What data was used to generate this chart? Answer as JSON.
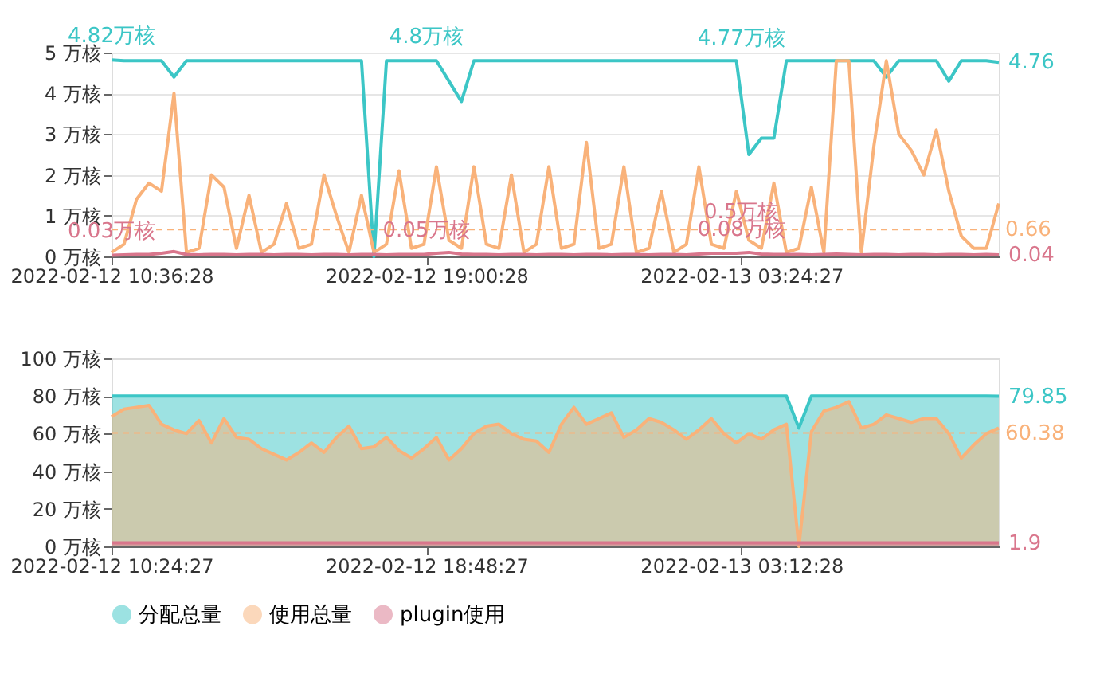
{
  "chart_data": [
    {
      "type": "line",
      "x": [
        "2022-02-12T10:36:28",
        "2022-02-12T10:56:28",
        "2022-02-12T11:16:28",
        "2022-02-12T11:36:28",
        "2022-02-12T11:56:28",
        "2022-02-12T12:16:28",
        "2022-02-12T12:36:28",
        "2022-02-12T12:56:28",
        "2022-02-12T13:16:28",
        "2022-02-12T13:36:28",
        "2022-02-12T13:56:28",
        "2022-02-12T14:16:28",
        "2022-02-12T14:36:28",
        "2022-02-12T14:56:28",
        "2022-02-12T15:16:28",
        "2022-02-12T15:36:28",
        "2022-02-12T15:56:28",
        "2022-02-12T16:16:28",
        "2022-02-12T16:36:28",
        "2022-02-12T16:56:28",
        "2022-02-12T17:16:28",
        "2022-02-12T17:36:28",
        "2022-02-12T17:56:28",
        "2022-02-12T18:16:28",
        "2022-02-12T18:36:28",
        "2022-02-12T18:56:28",
        "2022-02-12T19:16:28",
        "2022-02-12T19:36:28",
        "2022-02-12T19:56:28",
        "2022-02-12T20:16:28",
        "2022-02-12T20:36:28",
        "2022-02-12T20:56:28",
        "2022-02-12T21:16:28",
        "2022-02-12T21:36:28",
        "2022-02-12T21:56:28",
        "2022-02-12T22:16:28",
        "2022-02-12T22:36:28",
        "2022-02-12T22:56:28",
        "2022-02-12T23:16:28",
        "2022-02-12T23:36:28",
        "2022-02-12T23:56:28",
        "2022-02-13T00:16:28",
        "2022-02-13T00:36:28",
        "2022-02-13T00:56:28",
        "2022-02-13T01:16:28",
        "2022-02-13T01:36:28",
        "2022-02-13T01:56:28",
        "2022-02-13T02:16:28",
        "2022-02-13T02:36:28",
        "2022-02-13T02:56:28",
        "2022-02-13T03:16:28",
        "2022-02-13T03:36:28",
        "2022-02-13T03:56:28",
        "2022-02-13T04:16:28",
        "2022-02-13T04:36:28",
        "2022-02-13T04:56:28",
        "2022-02-13T05:16:28",
        "2022-02-13T05:36:28",
        "2022-02-13T05:56:28",
        "2022-02-13T06:16:28",
        "2022-02-13T06:36:28",
        "2022-02-13T06:56:28",
        "2022-02-13T07:16:28",
        "2022-02-13T07:36:28",
        "2022-02-13T07:56:28",
        "2022-02-13T08:16:28",
        "2022-02-13T08:36:28",
        "2022-02-13T08:56:28",
        "2022-02-13T09:16:28",
        "2022-02-13T09:36:28",
        "2022-02-13T09:56:28",
        "2022-02-13T10:16:28"
      ],
      "series": [
        {
          "color": "#3cc6c6",
          "values": [
            4.82,
            4.8,
            4.8,
            4.8,
            4.8,
            4.4,
            4.8,
            4.8,
            4.8,
            4.8,
            4.8,
            4.8,
            4.8,
            4.8,
            4.8,
            4.8,
            4.8,
            4.8,
            4.8,
            4.8,
            4.8,
            0.0,
            4.8,
            4.8,
            4.8,
            4.8,
            4.8,
            4.3,
            3.8,
            4.8,
            4.8,
            4.8,
            4.8,
            4.8,
            4.8,
            4.8,
            4.8,
            4.8,
            4.8,
            4.8,
            4.8,
            4.8,
            4.8,
            4.8,
            4.8,
            4.8,
            4.8,
            4.8,
            4.8,
            4.8,
            4.8,
            2.5,
            2.9,
            2.9,
            4.8,
            4.8,
            4.8,
            4.8,
            4.8,
            4.8,
            4.8,
            4.8,
            4.4,
            4.8,
            4.8,
            4.8,
            4.8,
            4.3,
            4.8,
            4.8,
            4.8,
            4.76
          ]
        },
        {
          "color": "#f9b27a",
          "values": [
            0.1,
            0.3,
            1.4,
            1.8,
            1.6,
            4.0,
            0.1,
            0.2,
            2.0,
            1.7,
            0.2,
            1.5,
            0.1,
            0.3,
            1.3,
            0.2,
            0.3,
            2.0,
            1.0,
            0.1,
            1.5,
            0.1,
            0.3,
            2.1,
            0.2,
            0.3,
            2.2,
            0.4,
            0.2,
            2.2,
            0.3,
            0.2,
            2.0,
            0.1,
            0.3,
            2.2,
            0.2,
            0.3,
            2.8,
            0.2,
            0.3,
            2.2,
            0.1,
            0.2,
            1.6,
            0.1,
            0.3,
            2.2,
            0.3,
            0.2,
            1.6,
            0.4,
            0.2,
            1.8,
            0.1,
            0.2,
            1.7,
            0.1,
            4.8,
            4.8,
            0.1,
            2.7,
            4.8,
            3.0,
            2.6,
            2.0,
            3.1,
            1.6,
            0.5,
            0.2,
            0.2,
            1.3
          ]
        },
        {
          "color": "#d9768c",
          "values": [
            0.03,
            0.04,
            0.05,
            0.05,
            0.08,
            0.12,
            0.05,
            0.04,
            0.05,
            0.05,
            0.04,
            0.05,
            0.05,
            0.04,
            0.05,
            0.05,
            0.04,
            0.05,
            0.05,
            0.04,
            0.05,
            0.05,
            0.04,
            0.05,
            0.05,
            0.05,
            0.08,
            0.1,
            0.06,
            0.05,
            0.05,
            0.04,
            0.05,
            0.05,
            0.04,
            0.05,
            0.05,
            0.04,
            0.05,
            0.05,
            0.04,
            0.05,
            0.05,
            0.04,
            0.05,
            0.05,
            0.04,
            0.06,
            0.08,
            0.08,
            0.08,
            0.1,
            0.06,
            0.05,
            0.05,
            0.05,
            0.04,
            0.05,
            0.06,
            0.05,
            0.04,
            0.05,
            0.05,
            0.04,
            0.05,
            0.05,
            0.04,
            0.05,
            0.05,
            0.04,
            0.05,
            0.04
          ]
        }
      ],
      "xlim": [
        "2022-02-12T10:36:28",
        "2022-02-13T10:16:28"
      ],
      "xticks": [
        {
          "value": "2022-02-12T10:36:28",
          "label": "2022-02-12 10:36:28"
        },
        {
          "value": "2022-02-12T19:00:28",
          "label": "2022-02-12 19:00:28"
        },
        {
          "value": "2022-02-13T03:24:27",
          "label": "2022-02-13 03:24:27"
        }
      ],
      "ylim": [
        0,
        5
      ],
      "yticks": [
        {
          "value": 0,
          "label": "0 万核"
        },
        {
          "value": 1,
          "label": "1 万核"
        },
        {
          "value": 2,
          "label": "2 万核"
        },
        {
          "value": 3,
          "label": "3 万核"
        },
        {
          "value": 4,
          "label": "4 万核"
        },
        {
          "value": 5,
          "label": "5 万核"
        }
      ],
      "grid": "y",
      "legend": false,
      "marker": "none",
      "line_style": "solid",
      "ref_lines": [
        {
          "axis": "y",
          "value": 0.66,
          "label": "0.66",
          "color": "#f9b27a",
          "line_style": "dashed"
        }
      ],
      "annotations": [
        {
          "text": "4.82万核",
          "x": "2022-02-12T10:36:28",
          "y": 4.82
        },
        {
          "text": "4.8万核",
          "x": "2022-02-12T19:00:28",
          "y": 4.8
        },
        {
          "text": "4.77万核",
          "x": "2022-02-13T03:24:27",
          "y": 4.77
        },
        {
          "text": "0.03万核",
          "x": "2022-02-12T10:36:28",
          "y": 0.03
        },
        {
          "text": "0.05万核",
          "x": "2022-02-12T19:00:28",
          "y": 0.05
        },
        {
          "text": "0.5万核",
          "x": "2022-02-13T03:24:27",
          "y": 0.5
        },
        {
          "text": "0.08万核",
          "x": "2022-02-13T03:24:27",
          "y": 0.08
        },
        {
          "text": "4.76",
          "x": "2022-02-13T10:16:28",
          "y": 4.76
        },
        {
          "text": "0.04",
          "x": "2022-02-13T10:16:28",
          "y": 0.04
        }
      ]
    },
    {
      "type": "area",
      "x": [
        "2022-02-12T10:24:27",
        "2022-02-12T10:44:27",
        "2022-02-12T11:04:27",
        "2022-02-12T11:24:27",
        "2022-02-12T11:44:27",
        "2022-02-12T12:04:27",
        "2022-02-12T12:24:27",
        "2022-02-12T12:44:27",
        "2022-02-12T13:04:27",
        "2022-02-12T13:24:27",
        "2022-02-12T13:44:27",
        "2022-02-12T14:04:27",
        "2022-02-12T14:24:27",
        "2022-02-12T14:44:27",
        "2022-02-12T15:04:27",
        "2022-02-12T15:24:27",
        "2022-02-12T15:44:27",
        "2022-02-12T16:04:27",
        "2022-02-12T16:24:27",
        "2022-02-12T16:44:27",
        "2022-02-12T17:04:27",
        "2022-02-12T17:24:27",
        "2022-02-12T17:44:27",
        "2022-02-12T18:04:27",
        "2022-02-12T18:24:27",
        "2022-02-12T18:44:27",
        "2022-02-12T19:04:27",
        "2022-02-12T19:24:27",
        "2022-02-12T19:44:27",
        "2022-02-12T20:04:27",
        "2022-02-12T20:24:27",
        "2022-02-12T20:44:27",
        "2022-02-12T21:04:27",
        "2022-02-12T21:24:27",
        "2022-02-12T21:44:27",
        "2022-02-12T22:04:27",
        "2022-02-12T22:24:27",
        "2022-02-12T22:44:27",
        "2022-02-12T23:04:27",
        "2022-02-12T23:24:27",
        "2022-02-12T23:44:27",
        "2022-02-13T00:04:27",
        "2022-02-13T00:24:27",
        "2022-02-13T00:44:27",
        "2022-02-13T01:04:27",
        "2022-02-13T01:24:27",
        "2022-02-13T01:44:27",
        "2022-02-13T02:04:27",
        "2022-02-13T02:24:27",
        "2022-02-13T02:44:27",
        "2022-02-13T03:04:27",
        "2022-02-13T03:24:27",
        "2022-02-13T03:44:27",
        "2022-02-13T04:04:27",
        "2022-02-13T04:24:27",
        "2022-02-13T04:44:27",
        "2022-02-13T05:04:27",
        "2022-02-13T05:24:27",
        "2022-02-13T05:44:27",
        "2022-02-13T06:04:27",
        "2022-02-13T06:24:27",
        "2022-02-13T06:44:27",
        "2022-02-13T07:04:27",
        "2022-02-13T07:24:27",
        "2022-02-13T07:44:27",
        "2022-02-13T08:04:27",
        "2022-02-13T08:24:27",
        "2022-02-13T08:44:27",
        "2022-02-13T09:04:27",
        "2022-02-13T09:24:27",
        "2022-02-13T09:44:27",
        "2022-02-13T10:04:27"
      ],
      "series": [
        {
          "name": "分配总量",
          "color": "#3cc6c6",
          "values": [
            80,
            80,
            80,
            80,
            80,
            80,
            80,
            80,
            80,
            80,
            80,
            80,
            80,
            80,
            80,
            80,
            80,
            80,
            80,
            80,
            80,
            80,
            80,
            80,
            80,
            80,
            80,
            80,
            80,
            80,
            80,
            80,
            80,
            80,
            80,
            80,
            80,
            80,
            80,
            80,
            80,
            80,
            80,
            80,
            80,
            80,
            80,
            80,
            80,
            80,
            80,
            80,
            80,
            80,
            80,
            63,
            80,
            80,
            80,
            80,
            80,
            80,
            80,
            80,
            80,
            80,
            80,
            80,
            80,
            80,
            80,
            79.85
          ]
        },
        {
          "name": "使用总量",
          "color": "#f9b27a",
          "values": [
            69,
            73,
            74,
            75,
            65,
            62,
            60,
            67,
            55,
            68,
            58,
            57,
            52,
            49,
            46,
            50,
            55,
            50,
            58,
            64,
            52,
            53,
            58,
            51,
            47,
            52,
            58,
            46,
            52,
            60,
            64,
            65,
            60,
            57,
            56,
            50,
            65,
            74,
            65,
            68,
            71,
            58,
            62,
            68,
            66,
            62,
            57,
            62,
            68,
            60,
            55,
            60,
            57,
            62,
            65,
            0,
            61,
            72,
            74,
            77,
            63,
            65,
            70,
            68,
            66,
            68,
            68,
            60,
            47,
            54,
            60,
            63
          ]
        },
        {
          "name": "plugin使用",
          "color": "#d9768c",
          "values": [
            1.9,
            1.9,
            1.9,
            1.9,
            1.9,
            1.9,
            1.9,
            1.9,
            1.9,
            1.9,
            1.9,
            1.9,
            1.9,
            1.9,
            1.9,
            1.9,
            1.9,
            1.9,
            1.9,
            1.9,
            1.9,
            1.9,
            1.9,
            1.9,
            1.9,
            1.9,
            1.9,
            1.9,
            1.9,
            1.9,
            1.9,
            1.9,
            1.9,
            1.9,
            1.9,
            1.9,
            1.9,
            1.9,
            1.9,
            1.9,
            1.9,
            1.9,
            1.9,
            1.9,
            1.9,
            1.9,
            1.9,
            1.9,
            1.9,
            1.9,
            1.9,
            1.9,
            1.9,
            1.9,
            1.9,
            1.9,
            1.9,
            1.9,
            1.9,
            1.9,
            1.9,
            1.9,
            1.9,
            1.9,
            1.9,
            1.9,
            1.9,
            1.9,
            1.9,
            1.9,
            1.9,
            1.9
          ]
        }
      ],
      "xlim": [
        "2022-02-12T10:24:27",
        "2022-02-13T10:04:27"
      ],
      "xticks": [
        {
          "value": "2022-02-12T10:24:27",
          "label": "2022-02-12 10:24:27"
        },
        {
          "value": "2022-02-12T18:48:27",
          "label": "2022-02-12 18:48:27"
        },
        {
          "value": "2022-02-13T03:12:28",
          "label": "2022-02-13 03:12:28"
        }
      ],
      "ylim": [
        0,
        100
      ],
      "yticks": [
        {
          "value": 0,
          "label": "0 万核"
        },
        {
          "value": 20,
          "label": "20 万核"
        },
        {
          "value": 40,
          "label": "40 万核"
        },
        {
          "value": 60,
          "label": "60 万核"
        },
        {
          "value": 80,
          "label": "80 万核"
        },
        {
          "value": 100,
          "label": "100 万核"
        }
      ],
      "grid": false,
      "legend": "bottom",
      "marker": "none",
      "line_style": "solid",
      "ref_lines": [
        {
          "axis": "y",
          "value": 60.38,
          "label": "60.38",
          "color": "#f9b27a",
          "line_style": "dashed"
        }
      ],
      "annotations": [
        {
          "text": "79.85",
          "x": "2022-02-13T10:04:27",
          "y": 79.85
        },
        {
          "text": "1.9",
          "x": "2022-02-13T10:04:27",
          "y": 1.9
        }
      ]
    }
  ]
}
